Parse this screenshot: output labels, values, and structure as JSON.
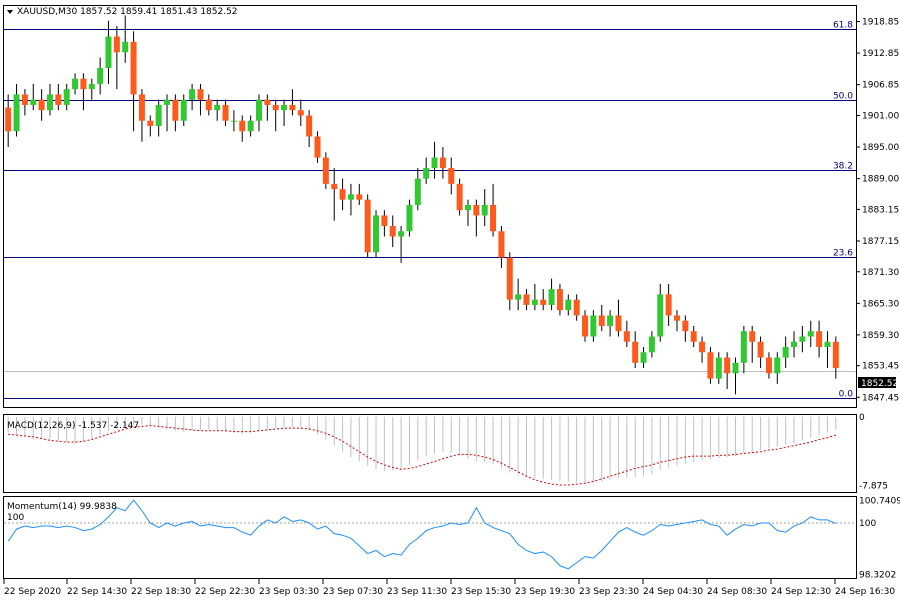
{
  "chart_data": [
    {
      "type": "candlestick",
      "symbol_line": "XAUUSD,M30  1857.52 1859.41 1851.43 1852.52",
      "title": "XAUUSD,M30",
      "ohlc_header": {
        "open": 1857.52,
        "high": 1859.41,
        "low": 1851.43,
        "close": 1852.52
      },
      "current_price": "1852.52",
      "ylim": [
        1845.6,
        1921.8
      ],
      "y_ticks": [
        "1918.85",
        "1912.85",
        "1906.85",
        "1901.00",
        "1895.00",
        "1889.00",
        "1883.15",
        "1877.15",
        "1871.30",
        "1865.30",
        "1859.30",
        "1853.45",
        "1847.45"
      ],
      "colors": {
        "bull": "#32c832",
        "bear": "#ff5a1e",
        "fib": "#000080",
        "grid": "#c0c0c0"
      },
      "fib_levels": [
        {
          "label": "61.8",
          "price": 1917.4
        },
        {
          "label": "50.0",
          "price": 1904.0
        },
        {
          "label": "38.2",
          "price": 1890.6
        },
        {
          "label": "23.6",
          "price": 1874.1
        },
        {
          "label": "0.0",
          "price": 1847.3
        }
      ],
      "candles": [
        [
          1902.5,
          1905,
          1895,
          1898
        ],
        [
          1898,
          1907,
          1897,
          1905
        ],
        [
          1905,
          1906,
          1901,
          1903
        ],
        [
          1903,
          1907,
          1902,
          1904
        ],
        [
          1904,
          1906,
          1900,
          1902
        ],
        [
          1902,
          1907,
          1901,
          1905
        ],
        [
          1905,
          1907,
          1902,
          1903
        ],
        [
          1903,
          1907,
          1902,
          1906
        ],
        [
          1906,
          1909,
          1905,
          1908
        ],
        [
          1908,
          1909,
          1902,
          1906
        ],
        [
          1906,
          1908,
          1904,
          1907
        ],
        [
          1907,
          1912,
          1905,
          1910
        ],
        [
          1910,
          1919,
          1907,
          1916
        ],
        [
          1916,
          1918,
          1906,
          1913
        ],
        [
          1913,
          1920,
          1911,
          1915
        ],
        [
          1915,
          1917,
          1898,
          1905
        ],
        [
          1905,
          1906,
          1896,
          1900
        ],
        [
          1900,
          1901,
          1897,
          1899
        ],
        [
          1899,
          1904,
          1897,
          1903
        ],
        [
          1903,
          1905,
          1898,
          1904
        ],
        [
          1904,
          1905,
          1898,
          1900
        ],
        [
          1900,
          1905,
          1899,
          1904
        ],
        [
          1904,
          1907,
          1902,
          1906
        ],
        [
          1906,
          1907,
          1901,
          1904
        ],
        [
          1904,
          1905,
          1901,
          1902
        ],
        [
          1902,
          1904,
          1900,
          1903
        ],
        [
          1903,
          1904,
          1899,
          1900
        ],
        [
          1900,
          1902,
          1898,
          1900
        ],
        [
          1900,
          1901,
          1896,
          1898
        ],
        [
          1898,
          1901,
          1897,
          1900
        ],
        [
          1900,
          1905,
          1898,
          1904
        ],
        [
          1904,
          1905,
          1900,
          1903
        ],
        [
          1903,
          1904,
          1898,
          1902
        ],
        [
          1902,
          1904,
          1899,
          1903
        ],
        [
          1903,
          1906,
          1901,
          1902
        ],
        [
          1902,
          1904,
          1899,
          1901
        ],
        [
          1901,
          1902,
          1895,
          1897
        ],
        [
          1897,
          1898,
          1892,
          1893
        ],
        [
          1893,
          1894,
          1887,
          1888
        ],
        [
          1888,
          1891,
          1881,
          1887
        ],
        [
          1887,
          1889,
          1883,
          1885
        ],
        [
          1885,
          1888,
          1882,
          1886
        ],
        [
          1886,
          1888,
          1884,
          1885
        ],
        [
          1885,
          1886,
          1874,
          1875
        ],
        [
          1875,
          1883,
          1874,
          1882
        ],
        [
          1882,
          1883,
          1878,
          1880
        ],
        [
          1880,
          1882,
          1876,
          1878
        ],
        [
          1878,
          1880,
          1873,
          1879
        ],
        [
          1879,
          1885,
          1878,
          1884
        ],
        [
          1884,
          1891,
          1883,
          1889
        ],
        [
          1889,
          1893,
          1888,
          1891
        ],
        [
          1891,
          1896,
          1889,
          1893
        ],
        [
          1893,
          1895,
          1889,
          1891
        ],
        [
          1891,
          1893,
          1886,
          1888
        ],
        [
          1888,
          1889,
          1882,
          1883
        ],
        [
          1883,
          1885,
          1880,
          1884
        ],
        [
          1884,
          1885,
          1878,
          1882
        ],
        [
          1882,
          1887,
          1880,
          1884
        ],
        [
          1884,
          1888,
          1878,
          1879
        ],
        [
          1879,
          1880,
          1872,
          1874
        ],
        [
          1874,
          1875,
          1864,
          1866
        ],
        [
          1866,
          1870,
          1864,
          1867
        ],
        [
          1867,
          1868,
          1864,
          1865
        ],
        [
          1865,
          1869,
          1864,
          1866
        ],
        [
          1866,
          1868,
          1864,
          1865
        ],
        [
          1865,
          1870,
          1864,
          1868
        ],
        [
          1868,
          1869,
          1863,
          1864
        ],
        [
          1864,
          1867,
          1863,
          1866
        ],
        [
          1866,
          1867,
          1862,
          1863
        ],
        [
          1863,
          1864,
          1858,
          1859
        ],
        [
          1859,
          1864,
          1858,
          1863
        ],
        [
          1863,
          1865,
          1860,
          1861
        ],
        [
          1861,
          1864,
          1859,
          1863
        ],
        [
          1863,
          1866,
          1859,
          1860
        ],
        [
          1860,
          1862,
          1857,
          1858
        ],
        [
          1858,
          1860,
          1853,
          1854
        ],
        [
          1854,
          1857,
          1853,
          1856
        ],
        [
          1856,
          1860,
          1855,
          1859
        ],
        [
          1859,
          1869,
          1858,
          1867
        ],
        [
          1867,
          1869,
          1861,
          1863
        ],
        [
          1863,
          1864,
          1860,
          1862
        ],
        [
          1862,
          1863,
          1858,
          1860
        ],
        [
          1860,
          1861,
          1857,
          1858
        ],
        [
          1858,
          1859,
          1854,
          1856
        ],
        [
          1856,
          1857,
          1850,
          1851
        ],
        [
          1851,
          1856,
          1850,
          1855
        ],
        [
          1855,
          1856,
          1849,
          1852
        ],
        [
          1852,
          1855,
          1848,
          1854
        ],
        [
          1854,
          1861,
          1852,
          1860
        ],
        [
          1860,
          1861,
          1854,
          1858
        ],
        [
          1858,
          1859,
          1853,
          1855
        ],
        [
          1855,
          1856,
          1851,
          1852
        ],
        [
          1852,
          1856,
          1850,
          1855
        ],
        [
          1855,
          1859,
          1853,
          1857
        ],
        [
          1857,
          1860,
          1855,
          1858
        ],
        [
          1858,
          1861,
          1856,
          1859
        ],
        [
          1859,
          1862,
          1857,
          1860
        ],
        [
          1860,
          1862,
          1855,
          1857
        ],
        [
          1857,
          1860,
          1853,
          1858
        ],
        [
          1858,
          1859,
          1851,
          1853
        ]
      ],
      "x_labels": [
        "22 Sep 2020",
        "22 Sep 14:30",
        "22 Sep 18:30",
        "22 Sep 22:30",
        "23 Sep 03:30",
        "23 Sep 07:30",
        "23 Sep 11:30",
        "23 Sep 15:30",
        "23 Sep 19:30",
        "23 Sep 23:30",
        "24 Sep 04:30",
        "24 Sep 08:30",
        "24 Sep 12:30",
        "24 Sep 16:30"
      ]
    },
    {
      "type": "bar",
      "title": "MACD(12,26,9) -1.537 -2.147",
      "indicator_label": "MACD(12,26,9)",
      "values_label": "-1.537 -2.147",
      "ylim": [
        -8.6,
        0.2
      ],
      "y_ticks": [
        "0",
        "-7.875"
      ],
      "colors": {
        "hist": "#c0c0c0",
        "signal": "#dc0000"
      },
      "histogram": [
        -1.8,
        -2.0,
        -2.2,
        -2.4,
        -2.5,
        -2.6,
        -2.8,
        -2.9,
        -3.0,
        -2.8,
        -2.5,
        -2.1,
        -1.6,
        -1.3,
        -1.0,
        -0.9,
        -0.9,
        -1.0,
        -1.2,
        -1.4,
        -1.6,
        -1.7,
        -1.6,
        -1.5,
        -1.5,
        -1.6,
        -1.7,
        -1.8,
        -1.9,
        -1.8,
        -1.6,
        -1.4,
        -1.3,
        -1.2,
        -1.2,
        -1.3,
        -1.5,
        -2.0,
        -2.6,
        -3.3,
        -4.0,
        -4.6,
        -5.1,
        -5.6,
        -6.0,
        -6.2,
        -6.1,
        -5.9,
        -5.5,
        -5.0,
        -4.5,
        -4.2,
        -4.0,
        -4.1,
        -4.4,
        -4.8,
        -5.1,
        -5.2,
        -5.4,
        -5.9,
        -6.4,
        -6.7,
        -6.9,
        -7.0,
        -7.1,
        -7.2,
        -7.3,
        -7.4,
        -7.5,
        -7.6,
        -7.5,
        -7.4,
        -7.2,
        -7.0,
        -6.9,
        -6.9,
        -6.8,
        -6.6,
        -6.1,
        -5.8,
        -5.6,
        -5.4,
        -5.2,
        -5.0,
        -4.9,
        -4.7,
        -4.6,
        -4.5,
        -4.2,
        -4.0,
        -3.8,
        -3.6,
        -3.4,
        -3.2,
        -3.0,
        -2.7,
        -2.4,
        -2.1,
        -1.8,
        -1.5
      ],
      "signal": [
        -2.0,
        -2.1,
        -2.2,
        -2.3,
        -2.5,
        -2.7,
        -2.8,
        -2.9,
        -2.9,
        -2.8,
        -2.6,
        -2.3,
        -2.0,
        -1.7,
        -1.4,
        -1.2,
        -1.1,
        -1.0,
        -1.1,
        -1.2,
        -1.3,
        -1.4,
        -1.5,
        -1.6,
        -1.6,
        -1.6,
        -1.6,
        -1.7,
        -1.7,
        -1.7,
        -1.6,
        -1.5,
        -1.4,
        -1.3,
        -1.3,
        -1.3,
        -1.4,
        -1.6,
        -1.9,
        -2.3,
        -2.8,
        -3.4,
        -4.0,
        -4.6,
        -5.1,
        -5.5,
        -5.8,
        -6.0,
        -5.9,
        -5.7,
        -5.4,
        -5.1,
        -4.8,
        -4.5,
        -4.3,
        -4.3,
        -4.4,
        -4.6,
        -4.9,
        -5.3,
        -5.8,
        -6.3,
        -6.8,
        -7.2,
        -7.5,
        -7.7,
        -7.8,
        -7.8,
        -7.7,
        -7.6,
        -7.4,
        -7.1,
        -6.8,
        -6.5,
        -6.2,
        -5.9,
        -5.7,
        -5.5,
        -5.2,
        -5.0,
        -4.8,
        -4.6,
        -4.5,
        -4.5,
        -4.5,
        -4.4,
        -4.4,
        -4.3,
        -4.2,
        -4.1,
        -4.0,
        -3.8,
        -3.7,
        -3.5,
        -3.3,
        -3.1,
        -2.9,
        -2.6,
        -2.4,
        -2.1
      ]
    },
    {
      "type": "line",
      "title": "Momentum(14) 99.9838",
      "indicator_label": "Momentum(14)",
      "value_label": "99.9838",
      "ref_label": "100",
      "ylim": [
        98.2,
        100.85
      ],
      "y_ticks": [
        "100.7409",
        "100",
        "98.3202"
      ],
      "colors": {
        "line": "#1e90ff",
        "ref": "#a0a0a0"
      },
      "values": [
        99.4,
        99.8,
        99.9,
        99.85,
        99.9,
        99.9,
        99.85,
        99.9,
        99.85,
        99.75,
        99.8,
        99.95,
        100.2,
        100.5,
        100.4,
        100.75,
        100.4,
        100.0,
        99.85,
        100.0,
        99.9,
        100.0,
        100.05,
        99.9,
        99.95,
        99.9,
        99.85,
        99.85,
        99.7,
        99.6,
        99.9,
        100.1,
        100.0,
        100.2,
        100.05,
        100.1,
        100.0,
        99.8,
        99.9,
        99.65,
        99.6,
        99.5,
        99.25,
        99.0,
        99.1,
        98.9,
        99.0,
        98.95,
        99.3,
        99.5,
        99.75,
        99.85,
        99.9,
        100.0,
        99.95,
        100.0,
        100.5,
        100.0,
        99.85,
        99.75,
        99.65,
        99.3,
        99.1,
        99.0,
        99.05,
        98.9,
        98.6,
        98.5,
        98.7,
        98.9,
        98.85,
        99.1,
        99.4,
        99.7,
        99.85,
        99.7,
        99.6,
        99.75,
        99.95,
        99.9,
        99.95,
        100.0,
        100.05,
        100.1,
        99.95,
        99.9,
        99.6,
        99.8,
        99.95,
        99.9,
        100.0,
        100.0,
        99.75,
        99.7,
        99.9,
        100.0,
        100.2,
        100.1,
        100.1,
        99.98
      ]
    }
  ]
}
